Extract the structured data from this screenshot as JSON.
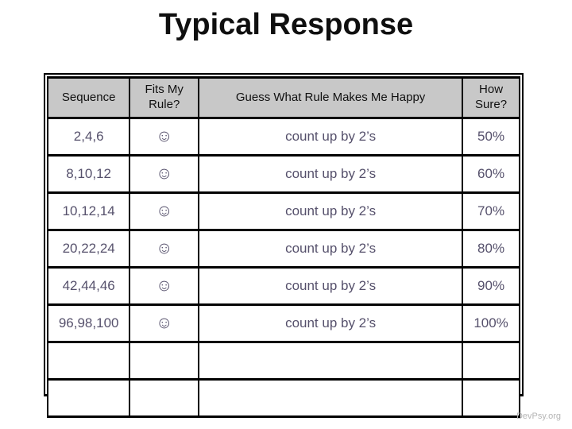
{
  "slide": {
    "title": "Typical Response",
    "credit": "DevPsy.org"
  },
  "appearance": {
    "slide_bg": "#ffffff",
    "title_color": "#0f0f0f",
    "header_bg": "#c8c8c8",
    "cell_text": "#56516c",
    "border": "#000000",
    "credit_color": "#b5b5b5"
  },
  "icons": {
    "smiley": "☺"
  },
  "table": {
    "columns": [
      "Sequence",
      "Fits My Rule?",
      "Guess What Rule Makes Me Happy",
      "How Sure?"
    ],
    "rows": [
      {
        "sequence": "2,4,6",
        "fits": "☺",
        "guess": "count up by 2’s",
        "sure": "50%"
      },
      {
        "sequence": "8,10,12",
        "fits": "☺",
        "guess": "count up by 2’s",
        "sure": "60%"
      },
      {
        "sequence": "10,12,14",
        "fits": "☺",
        "guess": "count up by 2’s",
        "sure": "70%"
      },
      {
        "sequence": "20,22,24",
        "fits": "☺",
        "guess": "count up by 2’s",
        "sure": "80%"
      },
      {
        "sequence": "42,44,46",
        "fits": "☺",
        "guess": "count up by 2’s",
        "sure": "90%"
      },
      {
        "sequence": "96,98,100",
        "fits": "☺",
        "guess": "count up by 2’s",
        "sure": "100%"
      },
      {
        "sequence": "",
        "fits": "",
        "guess": "",
        "sure": ""
      },
      {
        "sequence": "",
        "fits": "",
        "guess": "",
        "sure": ""
      }
    ]
  }
}
